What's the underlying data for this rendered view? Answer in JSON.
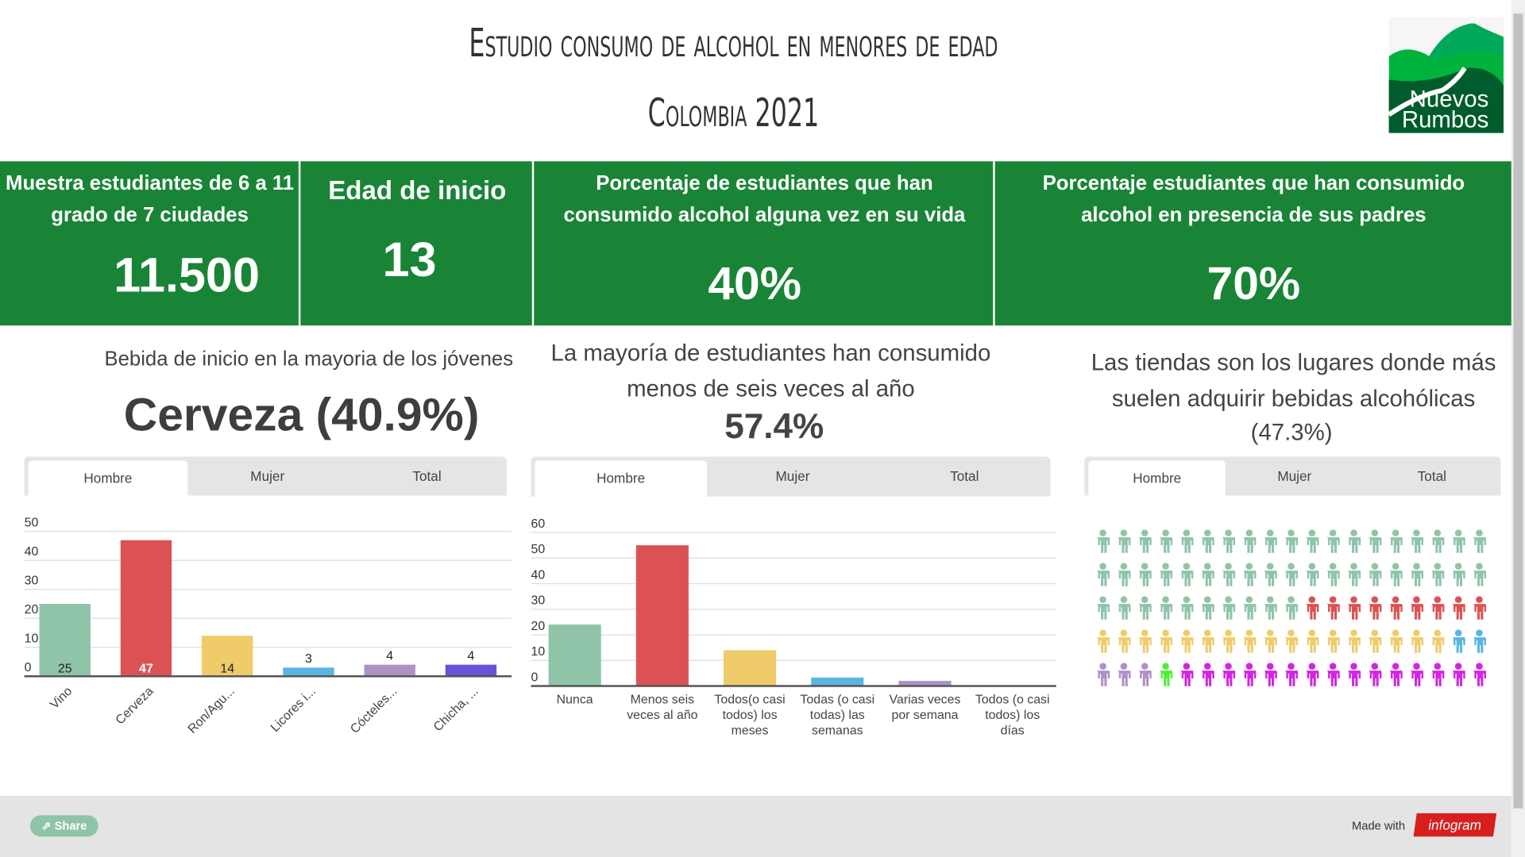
{
  "header": {
    "title_line1": "Estudio consumo de alcohol en menores de edad",
    "title_line2": "Colombia 2021",
    "logo_text": [
      "Nuevos",
      "Rumbos"
    ]
  },
  "colors": {
    "band": "#1a8436",
    "green": "#8fc4a8",
    "red": "#dc5254",
    "yellow": "#efcb6a",
    "blue": "#5ab5e3",
    "lilac": "#ad91c7",
    "violet": "#6a52d6",
    "lime": "#4cf034",
    "magenta": "#d225e3"
  },
  "stats": [
    {
      "label": "Muestra estudiantes de 6 a 11 grado de 7 ciudades",
      "value": "11.500"
    },
    {
      "label": "Edad de inicio",
      "value": "13"
    },
    {
      "label": "Porcentaje de estudiantes que han consumido alcohol alguna vez en su vida",
      "value": "40%"
    },
    {
      "label": "Porcentaje estudiantes que han consumido alcohol en presencia de sus padres",
      "value": "70%"
    }
  ],
  "sections": [
    {
      "heading": "Bebida de inicio en la mayoria de los jóvenes",
      "highlight": "Cerveza (40.9%)",
      "tabs": [
        "Hombre",
        "Mujer",
        "Total"
      ],
      "active_tab": "Hombre"
    },
    {
      "heading": "La mayoría de estudiantes han consumido menos de seis veces al año",
      "highlight": "57.4%",
      "tabs": [
        "Hombre",
        "Mujer",
        "Total"
      ],
      "active_tab": "Hombre"
    },
    {
      "heading": "Las tiendas son los lugares donde más suelen adquirir bebidas alcohólicas",
      "highlight": "(47.3%)",
      "tabs": [
        "Hombre",
        "Mujer",
        "Total"
      ],
      "active_tab": "Hombre"
    }
  ],
  "chart_data": [
    {
      "type": "bar",
      "categories": [
        "Vino",
        "Cerveza",
        "Ron/Agu...",
        "Licores i...",
        "Cócteles...",
        "Chicha, ..."
      ],
      "values": [
        25,
        47,
        14,
        3,
        4,
        4
      ],
      "data_labels": [
        "25",
        "47",
        "14",
        "3",
        "4",
        "4"
      ],
      "colors": [
        "#8fc4a8",
        "#dc5254",
        "#efcb6a",
        "#5ab5e3",
        "#ad91c7",
        "#6a52d6"
      ],
      "yticks": [
        0,
        10,
        20,
        30,
        40,
        50
      ],
      "ylim": [
        0,
        50
      ],
      "grid": true
    },
    {
      "type": "bar",
      "categories": [
        "Nunca",
        "Menos seis veces al año",
        "Todos(o casi todos) los meses",
        "Todas (o casi todas) las semanas",
        "Varias veces por semana",
        "Todos (o casi todos) los días"
      ],
      "values": [
        24,
        55,
        14,
        3.3,
        2,
        0.2
      ],
      "colors": [
        "#8fc4a8",
        "#dc5254",
        "#efcb6a",
        "#5ab5e3",
        "#ad91c7",
        "#6a52d6"
      ],
      "yticks": [
        0,
        10,
        20,
        30,
        40,
        50,
        60
      ],
      "ylim": [
        0,
        60
      ],
      "grid": true
    },
    {
      "type": "pictogram",
      "icon": "person-icon",
      "per_row": 19,
      "groups": [
        {
          "color": "#8fc4a8",
          "count": 48
        },
        {
          "color": "#dc5254",
          "count": 9
        },
        {
          "color": "#efcb6a",
          "count": 17
        },
        {
          "color": "#5ab5e3",
          "count": 2
        },
        {
          "color": "#ad91c7",
          "count": 3
        },
        {
          "color": "#4cf034",
          "count": 1
        },
        {
          "color": "#d225e3",
          "count": 15
        }
      ]
    }
  ],
  "footer": {
    "share_label": "Share",
    "made_with": "Made with",
    "brand": "infogram"
  }
}
